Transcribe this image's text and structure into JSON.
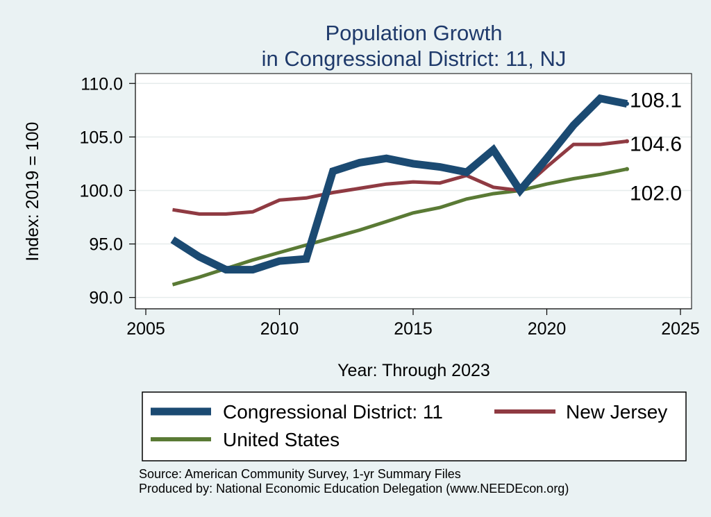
{
  "chart_data": {
    "type": "line",
    "title": [
      "Population Growth",
      "in Congressional District: 11, NJ"
    ],
    "xlabel": "Year: Through 2023",
    "ylabel": "Index: 2019 = 100",
    "xlim": [
      2005,
      2025
    ],
    "ylim": [
      89.2,
      110.6
    ],
    "x_ticks": [
      2005,
      2010,
      2015,
      2020,
      2025
    ],
    "x_tick_labels": [
      "2005",
      "2010",
      "2015",
      "2020",
      "2025"
    ],
    "y_ticks": [
      90,
      95,
      100,
      105,
      110
    ],
    "y_tick_labels": [
      "90.0",
      "95.0",
      "100.0",
      "105.0",
      "110.0"
    ],
    "grid": true,
    "x": [
      2006,
      2007,
      2008,
      2009,
      2010,
      2011,
      2012,
      2013,
      2014,
      2015,
      2016,
      2017,
      2018,
      2019,
      2020,
      2021,
      2022,
      2023
    ],
    "series": [
      {
        "name": "Congressional District: 11",
        "color": "#1b4a72",
        "width": "thick",
        "values": [
          95.4,
          93.8,
          92.6,
          92.6,
          93.4,
          93.6,
          101.8,
          102.6,
          103.0,
          102.5,
          102.2,
          101.7,
          103.8,
          100.0,
          103.0,
          106.1,
          108.6,
          108.1
        ],
        "end_label": "108.1"
      },
      {
        "name": "New Jersey",
        "color": "#8f3a42",
        "width": "medium",
        "values": [
          98.2,
          97.8,
          97.8,
          98.0,
          99.1,
          99.3,
          99.8,
          100.2,
          100.6,
          100.8,
          100.7,
          101.4,
          100.3,
          100.0,
          102.2,
          104.3,
          104.3,
          104.6
        ],
        "end_label": "104.6"
      },
      {
        "name": "United States",
        "color": "#5a7a35",
        "width": "medium",
        "values": [
          91.2,
          91.9,
          92.7,
          93.5,
          94.2,
          94.9,
          95.6,
          96.3,
          97.1,
          97.9,
          98.4,
          99.2,
          99.7,
          100.0,
          100.6,
          101.1,
          101.5,
          102.0
        ],
        "end_label": "102.0"
      }
    ],
    "legend": {
      "placement": "bottom",
      "entries": [
        "Congressional District: 11",
        "New Jersey",
        "United States"
      ]
    }
  },
  "footer": {
    "source": "Source: American Community Survey, 1-yr Summary Files",
    "produced_by": "Produced by: National Economic Education Delegation (www.NEEDEcon.org)"
  }
}
